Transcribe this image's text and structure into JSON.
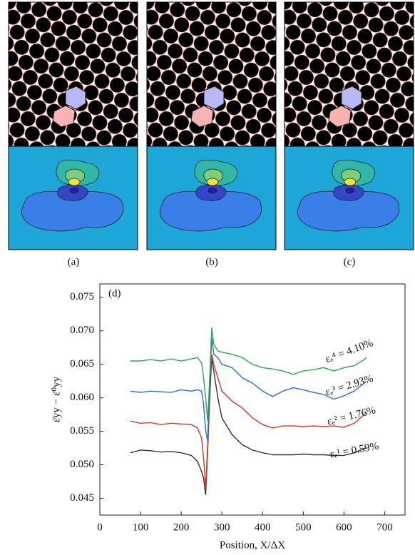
{
  "panels": [
    {
      "label": "(a)"
    },
    {
      "label": "(b)"
    },
    {
      "label": "(c)"
    }
  ],
  "chart_data": {
    "type": "line",
    "panel_label": "(d)",
    "x_label": "Position, X/ΔX",
    "y_label": "ε̄yy − ε̄⁰yy",
    "xlim": [
      0,
      750
    ],
    "ylim": [
      0.0425,
      0.077
    ],
    "xticks": [
      0,
      100,
      200,
      300,
      400,
      500,
      600,
      700
    ],
    "yticks": [
      0.045,
      {
        "value": 0.05,
        "label": "0.050"
      },
      0.055,
      {
        "value": 0.06,
        "label": "0.060"
      },
      0.065,
      {
        "value": 0.07,
        "label": "0.070"
      },
      0.075
    ],
    "x": [
      75,
      100,
      125,
      150,
      175,
      200,
      225,
      240,
      250,
      255,
      260,
      265,
      270,
      275,
      280,
      290,
      300,
      325,
      350,
      375,
      400,
      425,
      450,
      475,
      500,
      525,
      550,
      575,
      600,
      625,
      650,
      655
    ],
    "series": [
      {
        "name": "εₑ¹ = 0.59%",
        "color": "#333333",
        "values": [
          0.0518,
          0.0522,
          0.0521,
          0.0519,
          0.052,
          0.0518,
          0.0514,
          0.0505,
          0.049,
          0.048,
          0.0455,
          0.052,
          0.06,
          0.066,
          0.064,
          0.06,
          0.057,
          0.0545,
          0.053,
          0.0522,
          0.0518,
          0.0515,
          0.0515,
          0.0515,
          0.0516,
          0.0515,
          0.0515,
          0.0514,
          0.0514,
          0.0518,
          0.0524,
          0.0525
        ]
      },
      {
        "name": "εₑ² = 1.76%",
        "color": "#e8302a",
        "values": [
          0.0565,
          0.0562,
          0.0563,
          0.056,
          0.0562,
          0.0561,
          0.056,
          0.0555,
          0.054,
          0.051,
          0.0465,
          0.053,
          0.062,
          0.0665,
          0.065,
          0.063,
          0.061,
          0.0595,
          0.0585,
          0.057,
          0.056,
          0.0555,
          0.0558,
          0.0558,
          0.0557,
          0.0558,
          0.0557,
          0.0558,
          0.0556,
          0.0562,
          0.0575,
          0.0578
        ]
      },
      {
        "name": "εₑ³ = 2.93%",
        "color": "#2a6fd6",
        "values": [
          0.061,
          0.0608,
          0.061,
          0.0609,
          0.0608,
          0.0612,
          0.061,
          0.0612,
          0.061,
          0.059,
          0.0552,
          0.0535,
          0.062,
          0.069,
          0.0665,
          0.066,
          0.065,
          0.0645,
          0.063,
          0.0622,
          0.061,
          0.0602,
          0.061,
          0.0615,
          0.0612,
          0.0608,
          0.0605,
          0.0598,
          0.0603,
          0.061,
          0.0622,
          0.0625
        ]
      },
      {
        "name": "εₑ⁴ = 4.10%",
        "color": "#2ea84f",
        "values": [
          0.0655,
          0.0655,
          0.0657,
          0.0655,
          0.0658,
          0.0655,
          0.0658,
          0.066,
          0.0652,
          0.063,
          0.06,
          0.0565,
          0.063,
          0.0705,
          0.068,
          0.067,
          0.0668,
          0.0665,
          0.066,
          0.065,
          0.0645,
          0.0643,
          0.064,
          0.0635,
          0.064,
          0.0642,
          0.0645,
          0.064,
          0.0645,
          0.0648,
          0.0657,
          0.066
        ]
      }
    ]
  }
}
